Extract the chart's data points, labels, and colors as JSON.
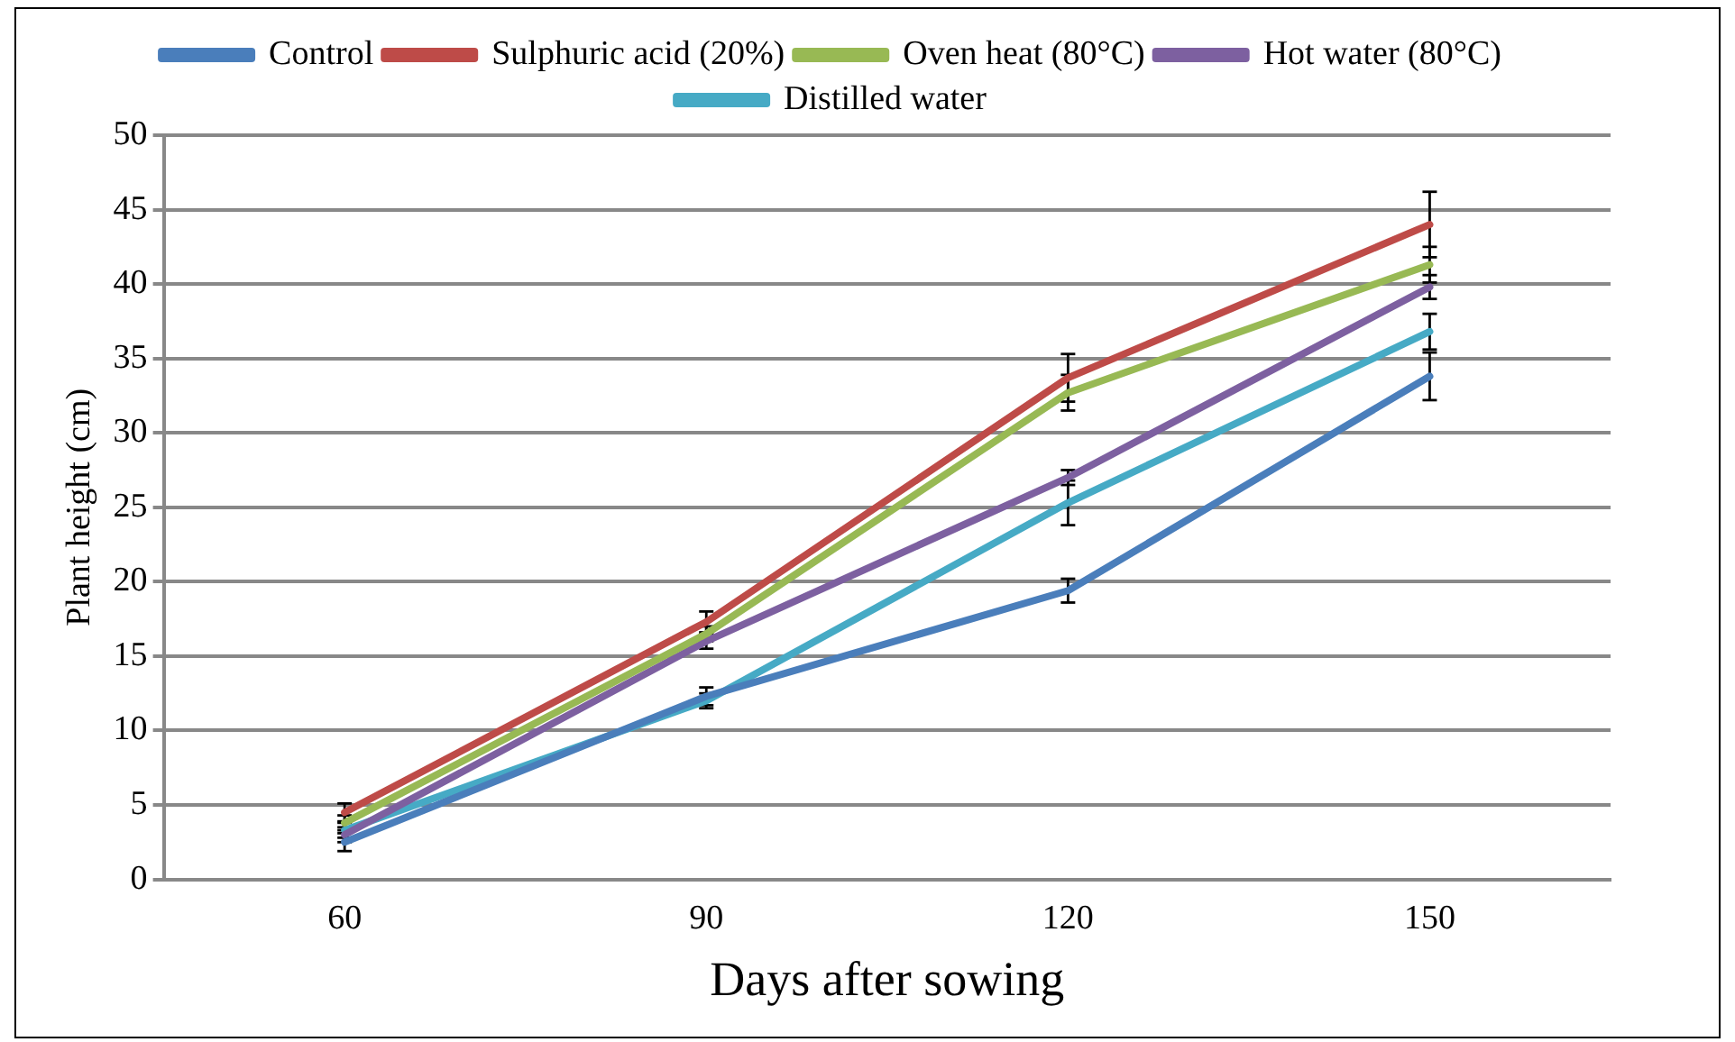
{
  "chart_data": {
    "type": "line",
    "xlabel": "Days after sowing",
    "ylabel": "Plant height (cm)",
    "categories": [
      "60",
      "90",
      "120",
      "150"
    ],
    "ylim": [
      0,
      50
    ],
    "yticks": [
      0,
      5,
      10,
      15,
      20,
      25,
      30,
      35,
      40,
      45,
      50
    ],
    "grid": "y",
    "legend": "top",
    "marker": "none",
    "line_style": "solid",
    "series": [
      {
        "name": "Control",
        "color": "#4a7ebb",
        "values": [
          2.5,
          12.3,
          19.4,
          33.8
        ],
        "errors": [
          0.6,
          0.6,
          0.8,
          1.6
        ]
      },
      {
        "name": "Sulphuric acid (20%)",
        "color": "#be4b48",
        "values": [
          4.5,
          17.3,
          33.7,
          44
        ],
        "errors": [
          0.6,
          0.7,
          1.6,
          2.2
        ]
      },
      {
        "name": "Oven heat (80°C)",
        "color": "#98b954",
        "values": [
          3.8,
          16.5,
          32.7,
          41.3
        ],
        "errors": [
          0.5,
          0.5,
          1.2,
          1.2
        ]
      },
      {
        "name": "Hot water (80°C)",
        "color": "#7d60a0",
        "values": [
          3,
          16,
          27,
          39.8
        ],
        "errors": [
          0.5,
          0.5,
          0.5,
          0.8
        ]
      },
      {
        "name": "Distilled water",
        "color": "#46aac5",
        "values": [
          3.3,
          12,
          25.3,
          36.8
        ],
        "errors": [
          0.5,
          0.5,
          1.5,
          1.2
        ]
      }
    ]
  }
}
